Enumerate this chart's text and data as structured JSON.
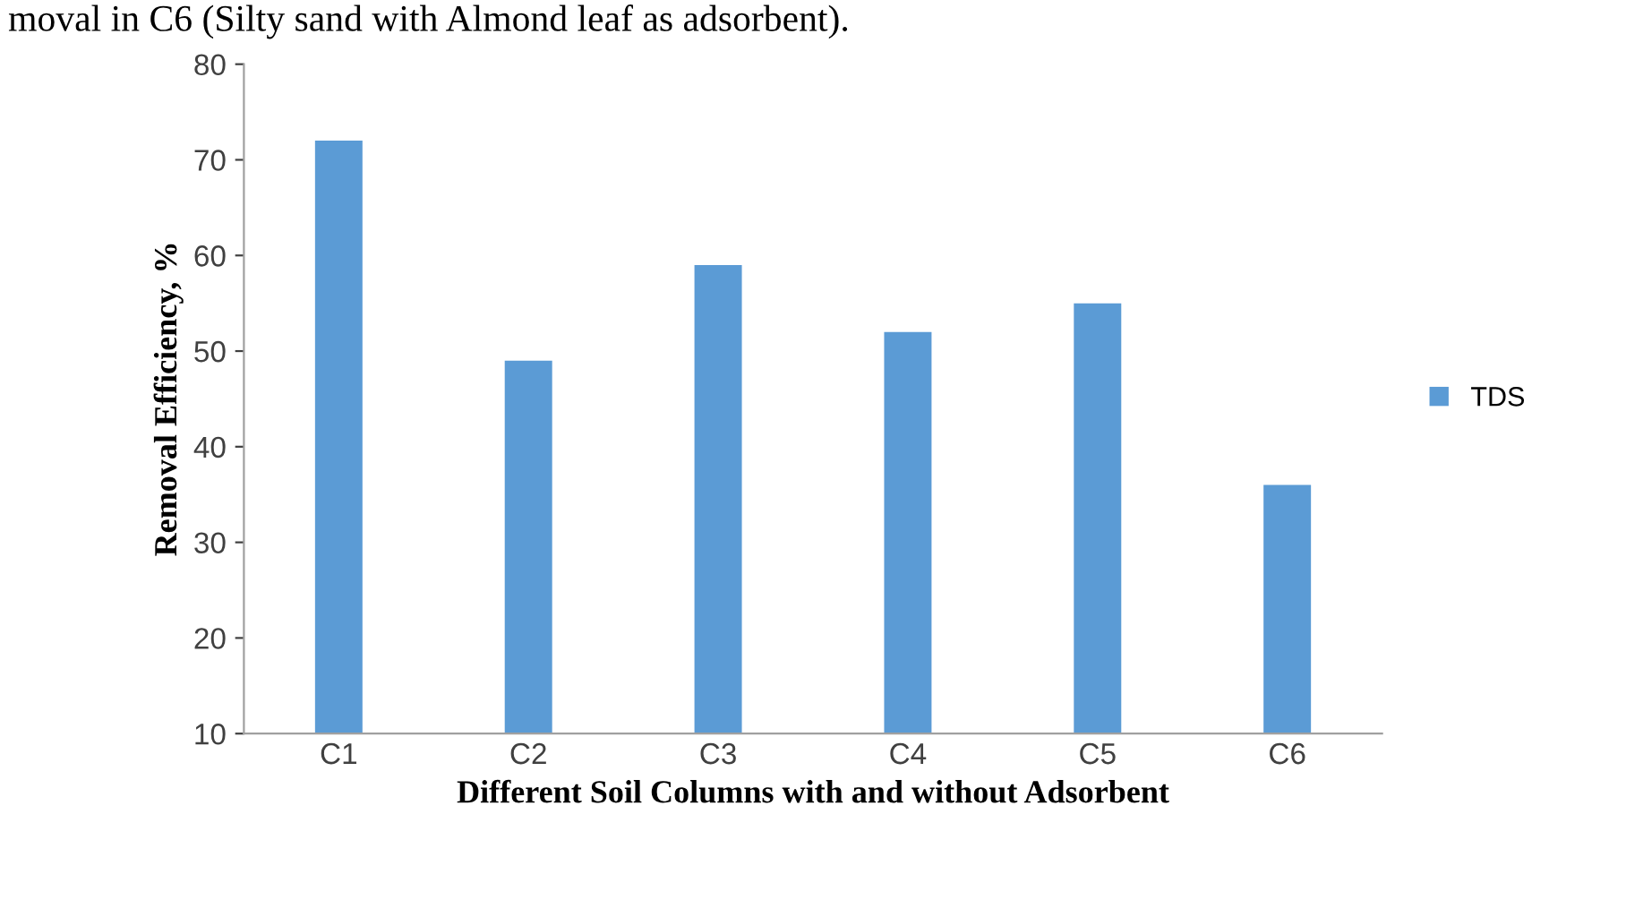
{
  "chart_data": {
    "type": "bar",
    "xlabel": "Different Soil Columns with and without Adsorbent",
    "ylabel": "Removal Efficiency, %",
    "annotations": [
      "moval in C6 (Silty sand with Almond leaf as adsorbent)."
    ],
    "categories": [
      "C1",
      "C2",
      "C3",
      "C4",
      "C5",
      "C6"
    ],
    "series": [
      {
        "name": "TDS",
        "color": "#5b9bd5",
        "values": [
          72,
          49,
          59,
          52,
          55,
          36
        ]
      }
    ],
    "ylim": [
      10,
      80
    ],
    "yticks": [
      10,
      20,
      30,
      40,
      50,
      60,
      70,
      80
    ],
    "grid": false,
    "legend": "right"
  }
}
